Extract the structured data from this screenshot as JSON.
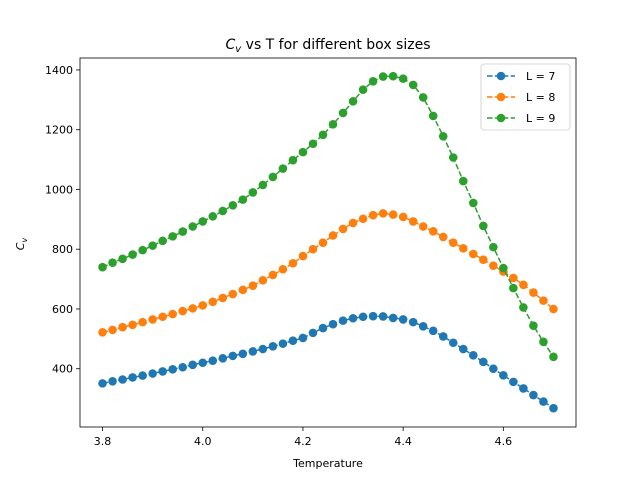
{
  "chart_data": {
    "type": "line",
    "title": "C_v vs T for different box sizes",
    "title_main": "C",
    "title_sub": "v",
    "title_rest": " vs T for different box sizes",
    "xlabel": "Temperature",
    "ylabel_main": "C",
    "ylabel_sub": "v",
    "xlim": [
      3.755,
      4.745
    ],
    "ylim": [
      205,
      1440
    ],
    "xticks": [
      3.8,
      4.0,
      4.2,
      4.4,
      4.6
    ],
    "xtick_labels": [
      "3.8",
      "4.0",
      "4.2",
      "4.4",
      "4.6"
    ],
    "yticks": [
      400,
      600,
      800,
      1000,
      1200,
      1400
    ],
    "ytick_labels": [
      "400",
      "600",
      "800",
      "1000",
      "1200",
      "1400"
    ],
    "grid": false,
    "legend_position": "top-right",
    "x": [
      3.8,
      3.82,
      3.84,
      3.86,
      3.88,
      3.9,
      3.92,
      3.94,
      3.96,
      3.98,
      4.0,
      4.02,
      4.04,
      4.06,
      4.08,
      4.1,
      4.12,
      4.14,
      4.16,
      4.18,
      4.2,
      4.22,
      4.24,
      4.26,
      4.28,
      4.3,
      4.32,
      4.34,
      4.36,
      4.38,
      4.4,
      4.42,
      4.44,
      4.46,
      4.48,
      4.5,
      4.52,
      4.54,
      4.56,
      4.58,
      4.6,
      4.62,
      4.64,
      4.66,
      4.68,
      4.7
    ],
    "series": [
      {
        "name": "L = 7",
        "color": "#1f77b4",
        "values": [
          351,
          358,
          364,
          371,
          377,
          384,
          391,
          398,
          405,
          413,
          420,
          427,
          435,
          443,
          450,
          458,
          466,
          475,
          484,
          494,
          503,
          520,
          536,
          549,
          561,
          569,
          574,
          576,
          575,
          570,
          565,
          556,
          542,
          527,
          508,
          487,
          466,
          445,
          423,
          400,
          378,
          356,
          334,
          312,
          290,
          268
        ]
      },
      {
        "name": "L = 8",
        "color": "#ff7f0e",
        "values": [
          522,
          530,
          539,
          547,
          556,
          565,
          574,
          583,
          593,
          602,
          612,
          624,
          637,
          650,
          664,
          678,
          696,
          714,
          733,
          753,
          777,
          800,
          822,
          846,
          868,
          888,
          902,
          914,
          920,
          916,
          908,
          893,
          876,
          860,
          841,
          822,
          803,
          784,
          765,
          745,
          725,
          704,
          681,
          655,
          628,
          600
        ]
      },
      {
        "name": "L = 9",
        "color": "#2ca02c",
        "values": [
          740,
          755,
          768,
          782,
          797,
          812,
          828,
          843,
          859,
          876,
          893,
          910,
          928,
          947,
          966,
          990,
          1015,
          1042,
          1070,
          1098,
          1125,
          1153,
          1183,
          1218,
          1256,
          1295,
          1334,
          1362,
          1378,
          1379,
          1371,
          1350,
          1308,
          1246,
          1178,
          1107,
          1028,
          955,
          878,
          807,
          737,
          670,
          605,
          544,
          490,
          440
        ]
      }
    ]
  }
}
